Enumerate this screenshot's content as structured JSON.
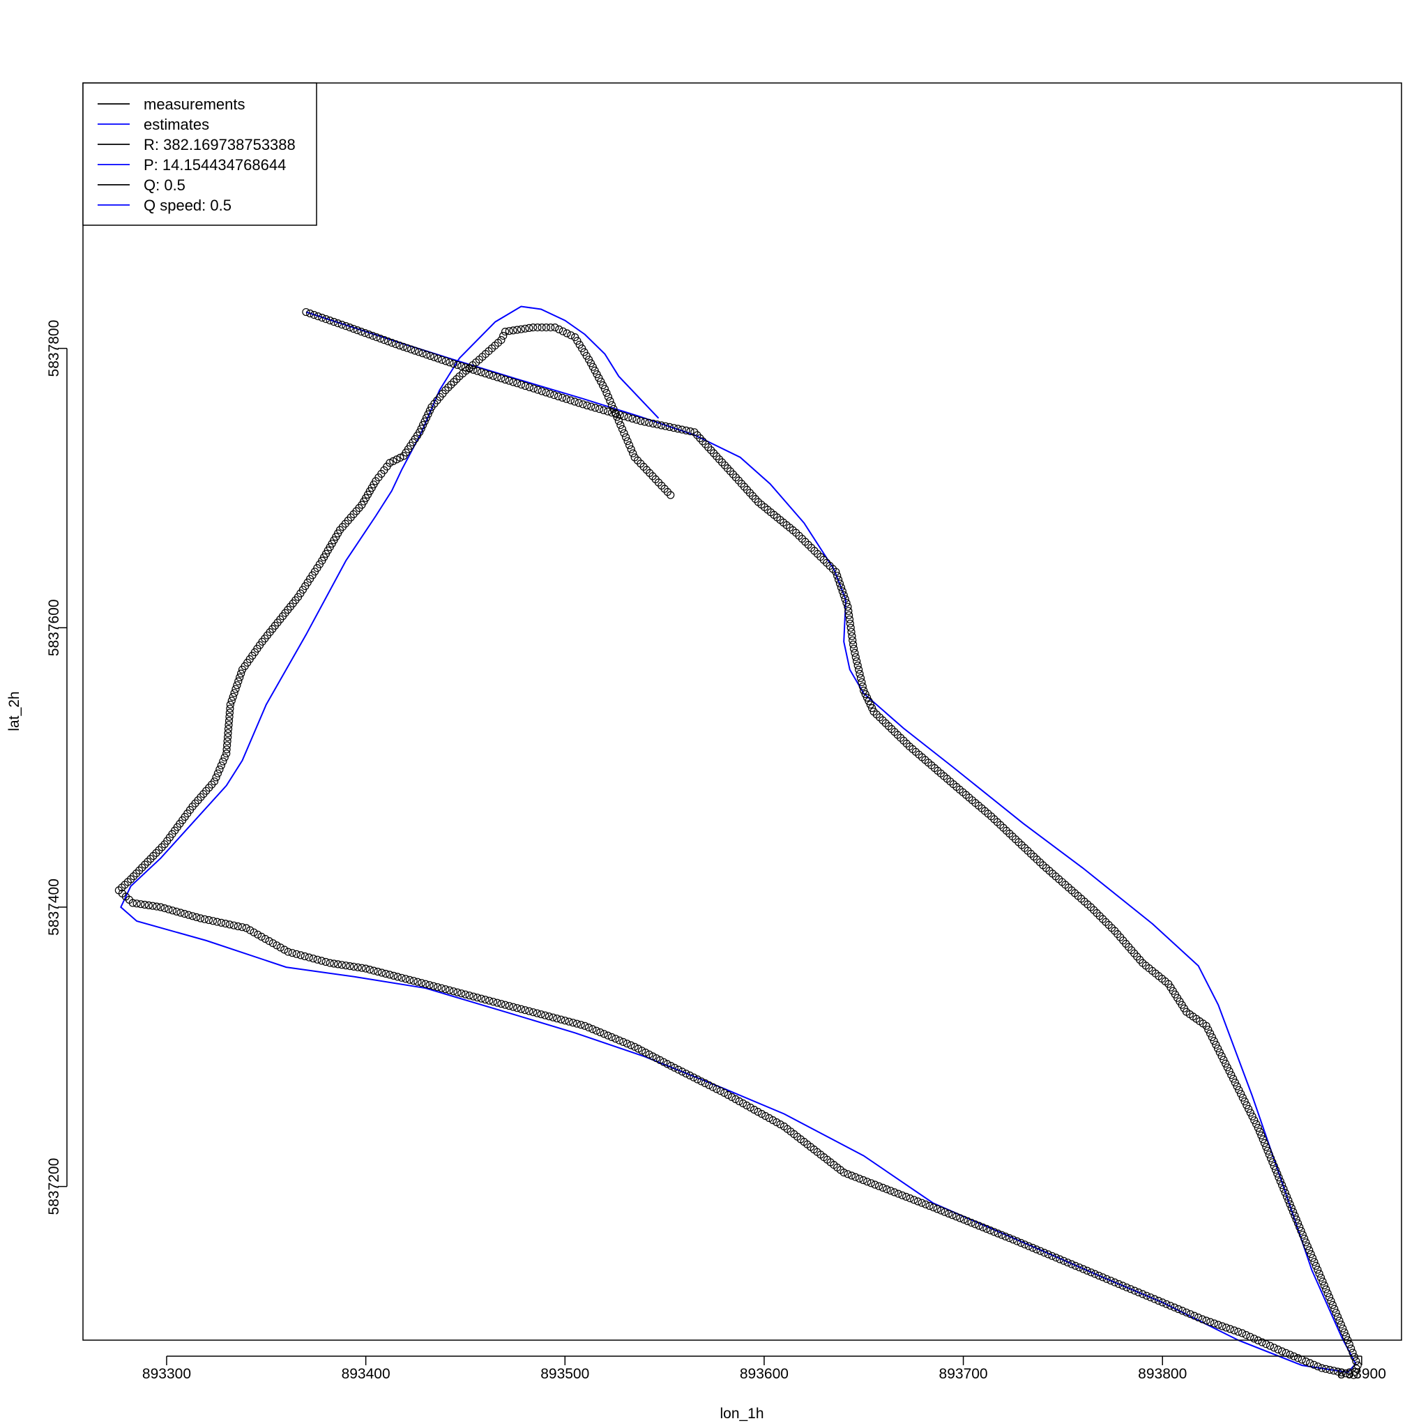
{
  "chart_data": {
    "type": "scatter",
    "xlabel": "lon_1h",
    "ylabel": "lat_2h",
    "xlim": [
      893258,
      893920
    ],
    "ylim": [
      5837090,
      5837990
    ],
    "x_ticks": [
      {
        "value": 893300,
        "label": "893300"
      },
      {
        "value": 893400,
        "label": "893400"
      },
      {
        "value": 893500,
        "label": "893500"
      },
      {
        "value": 893600,
        "label": "893600"
      },
      {
        "value": 893700,
        "label": "893700"
      },
      {
        "value": 893800,
        "label": "893800"
      },
      {
        "value": 893900,
        "label": "893900"
      }
    ],
    "y_ticks": [
      {
        "value": 5837200,
        "label": "5837200"
      },
      {
        "value": 5837400,
        "label": "5837400"
      },
      {
        "value": 5837600,
        "label": "5837600"
      },
      {
        "value": 5837800,
        "label": "5837800"
      }
    ],
    "legend": {
      "position": "top-left",
      "entries": [
        {
          "label": "measurements",
          "color": "#000000"
        },
        {
          "label": "estimates",
          "color": "#0000ff"
        },
        {
          "label": "R: 382.169738753388",
          "color": "#000000"
        },
        {
          "label": "P: 14.154434768644",
          "color": "#0000ff"
        },
        {
          "label": "Q: 0.5",
          "color": "#000000"
        },
        {
          "label": "Q speed: 0.5",
          "color": "#0000ff"
        }
      ]
    },
    "series": [
      {
        "name": "measurements",
        "style": "points",
        "color": "#000000",
        "x": [
          893553,
          893535,
          893527,
          893520,
          893512,
          893505,
          893495,
          893484,
          893470,
          893468,
          893457,
          893447,
          893440,
          893433,
          893427,
          893419,
          893412,
          893405,
          893398,
          893387,
          893378,
          893366,
          893348,
          893338,
          893332,
          893330,
          893324,
          893313,
          893299,
          893282,
          893276,
          893283,
          893297,
          893317,
          893340,
          893361,
          893382,
          893400,
          893430,
          893470,
          893510,
          893535,
          893555,
          893580,
          893610,
          893640,
          893685,
          893725,
          893770,
          893800,
          893820,
          893840,
          893860,
          893880,
          893896,
          893898,
          893893,
          893872,
          893848,
          893822,
          893812,
          893803,
          893790,
          893776,
          893764,
          893740,
          893714,
          893695,
          893673,
          893655,
          893650,
          893645,
          893642,
          893636,
          893616,
          893597,
          893583,
          893565,
          893538,
          893509,
          893476,
          893444,
          893415,
          893390,
          893370
        ],
        "y": [
          5837695,
          5837722,
          5837748,
          5837771,
          5837792,
          5837808,
          5837815,
          5837815,
          5837812,
          5837806,
          5837792,
          5837780,
          5837770,
          5837758,
          5837740,
          5837723,
          5837718,
          5837705,
          5837688,
          5837670,
          5837648,
          5837622,
          5837590,
          5837570,
          5837545,
          5837510,
          5837490,
          5837472,
          5837445,
          5837420,
          5837412,
          5837403,
          5837400,
          5837392,
          5837385,
          5837368,
          5837360,
          5837356,
          5837345,
          5837330,
          5837315,
          5837300,
          5837285,
          5837267,
          5837243,
          5837210,
          5837185,
          5837162,
          5837135,
          5837117,
          5837105,
          5837095,
          5837082,
          5837070,
          5837065,
          5837072,
          5837090,
          5837160,
          5837242,
          5837315,
          5837325,
          5837345,
          5837360,
          5837383,
          5837400,
          5837430,
          5837465,
          5837488,
          5837515,
          5837540,
          5837555,
          5837585,
          5837615,
          5837640,
          5837668,
          5837690,
          5837712,
          5837740,
          5837748,
          5837760,
          5837775,
          5837789,
          5837803,
          5837816,
          5837826
        ]
      },
      {
        "name": "estimates",
        "style": "line",
        "color": "#0000ff",
        "x": [
          893370,
          893415,
          893444,
          893476,
          893509,
          893538,
          893565,
          893588,
          893603,
          893620,
          893635,
          893641,
          893640,
          893643,
          893650,
          893670,
          893695,
          893730,
          893760,
          893795,
          893818,
          893828,
          893845,
          893860,
          893875,
          893890,
          893897,
          893893,
          893870,
          893838,
          893800,
          893770,
          893730,
          893685,
          893650,
          893610,
          893580,
          893540,
          893505,
          893470,
          893430,
          893395,
          893360,
          893320,
          893285,
          893277,
          893282,
          893297,
          893316,
          893330,
          893338,
          893350,
          893370,
          893390,
          893405,
          893413,
          893418,
          893428,
          893437,
          893447,
          893465,
          893478,
          893488,
          893500,
          893510,
          893520,
          893527,
          893547
        ],
        "y": [
          5837826,
          5837805,
          5837792,
          5837778,
          5837764,
          5837751,
          5837738,
          5837722,
          5837703,
          5837675,
          5837642,
          5837620,
          5837590,
          5837570,
          5837553,
          5837528,
          5837500,
          5837460,
          5837428,
          5837388,
          5837358,
          5837330,
          5837265,
          5837203,
          5837140,
          5837092,
          5837073,
          5837067,
          5837072,
          5837090,
          5837117,
          5837135,
          5837160,
          5837188,
          5837222,
          5837252,
          5837270,
          5837293,
          5837310,
          5837325,
          5837342,
          5837350,
          5837357,
          5837376,
          5837390,
          5837400,
          5837415,
          5837435,
          5837465,
          5837487,
          5837505,
          5837545,
          5837595,
          5837648,
          5837680,
          5837698,
          5837713,
          5837740,
          5837770,
          5837793,
          5837819,
          5837830,
          5837828,
          5837820,
          5837810,
          5837796,
          5837780,
          5837750
        ]
      }
    ]
  }
}
